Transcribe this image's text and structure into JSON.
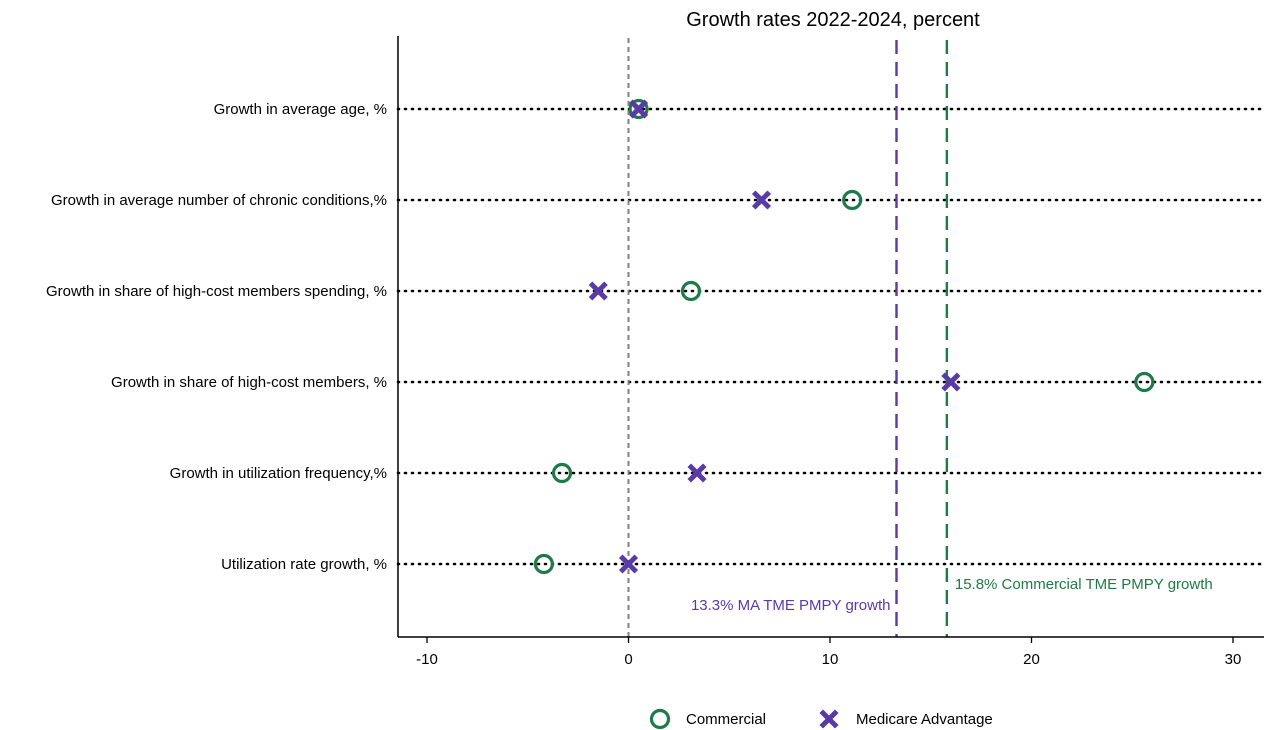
{
  "chart_data": {
    "type": "scatter",
    "title": "Growth rates 2022-2024, percent",
    "xlabel": "",
    "ylabel": "",
    "xlim": [
      -11.5,
      31.5
    ],
    "xticks": [
      -10,
      0,
      10,
      20,
      30
    ],
    "categories": [
      "Growth in average age, %",
      "Growth in average number of chronic conditions,%",
      "Growth in share of high-cost members spending, %",
      "Growth in share of high-cost members, %",
      "Growth in utilization frequency,%",
      "Utilization rate growth, %"
    ],
    "series": [
      {
        "name": "Commercial",
        "marker": "circle",
        "color": "#1e7a46",
        "values": [
          0.5,
          11.1,
          3.1,
          25.6,
          -3.3,
          -4.2
        ]
      },
      {
        "name": "Medicare Advantage",
        "marker": "x",
        "color": "#5a3aa6",
        "values": [
          0.5,
          6.6,
          -1.5,
          16.0,
          3.4,
          0.0
        ]
      }
    ],
    "reference_lines": [
      {
        "x": 0,
        "style": "dashed",
        "color": "#808080",
        "label": ""
      },
      {
        "x": 13.3,
        "style": "dashed",
        "color": "#5a3aa6",
        "label": "13.3% MA TME PMPY growth",
        "label_side": "left"
      },
      {
        "x": 15.8,
        "style": "dashed",
        "color": "#1e7a46",
        "label": "15.8% Commercial TME PMPY growth",
        "label_side": "right"
      }
    ],
    "legend_position": "bottom-center",
    "grid": "dotted horizontal row lines"
  }
}
